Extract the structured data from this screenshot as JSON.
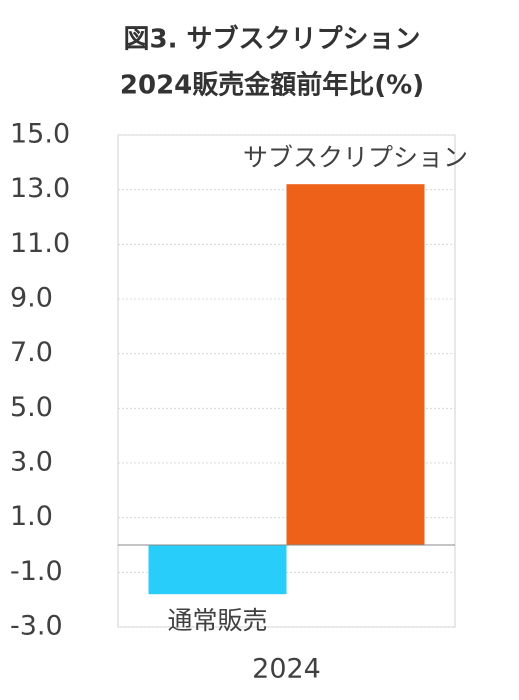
{
  "chart_data": {
    "type": "bar",
    "title": "図3. サブスクリプション",
    "subtitle": "2024販売金額前年比(%)",
    "categories": [
      "2024"
    ],
    "series": [
      {
        "name": "通常販売",
        "color": "#29cdf9",
        "values": [
          -1.8
        ]
      },
      {
        "name": "サブスクリプション",
        "color": "#ee6119",
        "values": [
          13.2
        ]
      }
    ],
    "ylim": [
      -3,
      15
    ],
    "yticks": [
      {
        "value": -3,
        "label": "-3.0"
      },
      {
        "value": -1,
        "label": "-1.0"
      },
      {
        "value": 1,
        "label": "1.0"
      },
      {
        "value": 3,
        "label": "3.0"
      },
      {
        "value": 5,
        "label": "5.0"
      },
      {
        "value": 7,
        "label": "7.0"
      },
      {
        "value": 9,
        "label": "9.0"
      },
      {
        "value": 11,
        "label": "11.0"
      },
      {
        "value": 13,
        "label": "13.0"
      },
      {
        "value": 15,
        "label": "15.0"
      }
    ],
    "grid": true
  }
}
